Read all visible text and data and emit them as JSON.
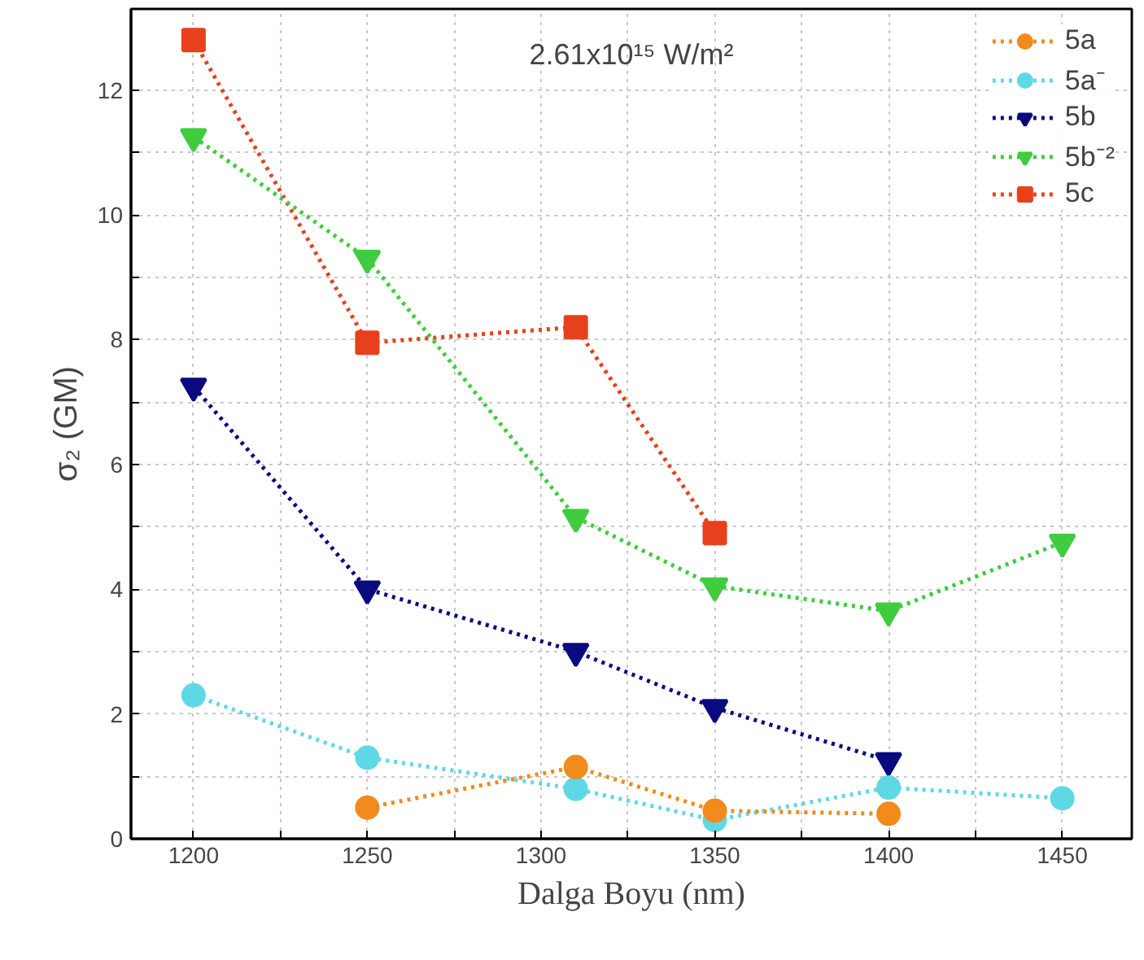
{
  "chart_data": {
    "type": "line",
    "title": "2.61x10¹⁵ W/m²",
    "xlabel": "Dalga Boyu (nm)",
    "ylabel": "σ₂ (GM)",
    "xlim": [
      1182,
      1470
    ],
    "ylim": [
      0,
      13.3
    ],
    "xticks": [
      1200,
      {
        "value": 1225,
        "label": null
      },
      1250,
      {
        "value": 1275,
        "label": null
      },
      1300,
      {
        "value": 1325,
        "label": null
      },
      1350,
      {
        "value": 1375,
        "label": null
      },
      1400,
      {
        "value": 1425,
        "label": null
      },
      1450
    ],
    "yticks": [
      0,
      {
        "value": 1,
        "label": null
      },
      2,
      {
        "value": 3,
        "label": null
      },
      4,
      {
        "value": 5,
        "label": null
      },
      6,
      {
        "value": 7,
        "label": null
      },
      8,
      {
        "value": 9,
        "label": null
      },
      10,
      {
        "value": 11,
        "label": null
      },
      12
    ],
    "grid": true,
    "legend": "top right",
    "line_style": "dotted",
    "series": [
      {
        "name": "5a",
        "color": "#f28a1c",
        "marker": "circle",
        "x": [
          1250,
          1310,
          1350,
          1400
        ],
        "values": [
          0.5,
          1.15,
          0.45,
          0.4
        ]
      },
      {
        "name": "5a⁻",
        "color": "#5fd8e6",
        "marker": "circle",
        "x": [
          1200,
          1250,
          1310,
          1350,
          1400,
          1450
        ],
        "values": [
          2.3,
          1.3,
          0.8,
          0.3,
          0.82,
          0.65
        ]
      },
      {
        "name": "5b",
        "color": "#0a0a80",
        "marker": "triangle",
        "x": [
          1200,
          1250,
          1310,
          1350,
          1400
        ],
        "values": [
          7.25,
          4.0,
          3.0,
          2.1,
          1.25
        ]
      },
      {
        "name": "5b⁻²",
        "color": "#3fcc3f",
        "marker": "triangle",
        "x": [
          1200,
          1250,
          1310,
          1350,
          1400,
          1450
        ],
        "values": [
          11.25,
          9.3,
          5.15,
          4.05,
          3.65,
          4.75
        ]
      },
      {
        "name": "5c",
        "color": "#e8401c",
        "marker": "square",
        "x": [
          1200,
          1250,
          1310,
          1350
        ],
        "values": [
          12.8,
          7.95,
          8.2,
          4.9
        ]
      }
    ]
  }
}
